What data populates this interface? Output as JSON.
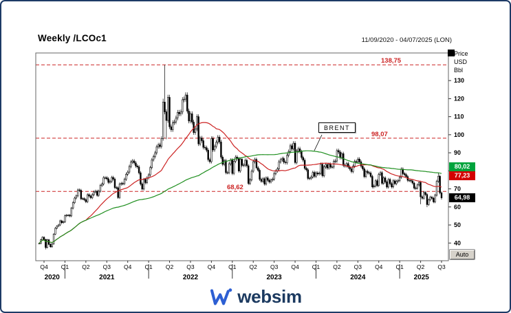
{
  "window": {
    "title": "Weekly /LCOc1",
    "date_range": "11/09/2020 - 04/07/2025 (LON)"
  },
  "annotations": {
    "instrument_label": "BRENT"
  },
  "controls": {
    "auto_button": "Auto"
  },
  "footer": {
    "brand": "websim"
  },
  "price_tags": [
    {
      "label": "80,02",
      "value": 80.02,
      "color": "#00a33c"
    },
    {
      "label": "77,23",
      "value": 77.23,
      "color": "#d40000"
    },
    {
      "label": "64,98",
      "value": 64.98,
      "color": "#000000"
    }
  ],
  "chart_data": {
    "type": "candlestick",
    "title": "Weekly /LCOc1",
    "instrument": "BRENT",
    "interval": "weekly",
    "x_range": "11/09/2020 - 04/07/2025",
    "ylim": [
      30.2,
      145.3
    ],
    "y_ticks": [
      130,
      120,
      110,
      100,
      90,
      80,
      70,
      60,
      50,
      40
    ],
    "y_unit_labels": [
      "Price",
      "USD",
      "Bbl"
    ],
    "x_quarters": [
      "Q4",
      "Q1",
      "Q2",
      "Q3",
      "Q4",
      "Q1",
      "Q2",
      "Q3",
      "Q4",
      "Q1",
      "Q2",
      "Q3",
      "Q4",
      "Q1",
      "Q2",
      "Q3",
      "Q4",
      "Q1",
      "Q2",
      "Q3"
    ],
    "x_years": [
      "2020",
      "2021",
      "2022",
      "2023",
      "2024",
      "2025"
    ],
    "levels": [
      {
        "value": 138.75,
        "label": "138,75"
      },
      {
        "value": 98.07,
        "label": "98,07"
      },
      {
        "value": 68.62,
        "label": "68,62"
      }
    ],
    "closes": [
      39.8,
      41.8,
      43.2,
      41.9,
      37.5,
      41.8,
      39.3,
      37.9,
      39.5,
      44.9,
      48.2,
      49.3,
      50.0,
      52.3,
      51.3,
      51.8,
      55.1,
      55.4,
      55.4,
      55.0,
      59.3,
      62.4,
      64.9,
      66.1,
      69.4,
      69.2,
      64.5,
      64.6,
      64.0,
      62.9,
      66.8,
      66.1,
      65.1,
      66.8,
      68.3,
      68.7,
      66.4,
      68.7,
      71.9,
      72.7,
      76.2,
      76.2,
      75.6,
      73.6,
      74.1,
      76.3,
      75.4,
      70.7,
      70.6,
      65.2,
      72.7,
      73.0,
      72.9,
      75.3,
      78.1,
      79.3,
      82.4,
      84.9,
      85.5,
      84.4,
      82.7,
      82.2,
      78.9,
      72.7,
      69.9,
      75.2,
      73.5,
      76.1,
      77.8,
      81.8,
      86.1,
      87.9,
      90.0,
      93.3,
      94.4,
      93.5,
      97.9,
      118.1,
      112.7,
      107.9,
      120.7,
      104.4,
      102.8,
      106.7,
      107.1,
      109.3,
      112.4,
      111.6,
      112.6,
      119.4,
      119.7,
      122.0,
      113.1,
      107.6,
      111.6,
      107.0,
      101.2,
      103.2,
      110.0,
      94.9,
      98.2,
      96.7,
      93.0,
      92.8,
      91.4,
      86.2,
      85.1,
      97.9,
      91.6,
      93.5,
      95.8,
      98.6,
      96.0,
      87.6,
      83.6,
      85.6,
      79.0,
      79.0,
      83.9,
      85.9,
      78.6,
      85.3,
      87.6,
      86.7,
      79.9,
      86.4,
      83.0,
      83.2,
      85.8,
      82.8,
      73.0,
      75.0,
      79.8,
      85.1,
      86.3,
      81.7,
      80.3,
      75.3,
      74.2,
      75.6,
      72.7,
      76.1,
      74.8,
      73.9,
      74.9,
      75.4,
      78.5,
      79.9,
      81.1,
      85.0,
      86.2,
      86.8,
      84.8,
      84.5,
      88.6,
      90.7,
      93.9,
      92.2,
      95.3,
      84.6,
      90.9,
      92.2,
      90.5,
      87.4,
      85.9,
      81.4,
      80.6,
      75.8,
      75.9,
      76.6,
      79.1,
      77.0,
      78.8,
      78.3,
      78.6,
      83.6,
      77.3,
      82.2,
      83.5,
      81.6,
      83.6,
      82.1,
      82.1,
      85.3,
      85.4,
      91.2,
      90.4,
      87.3,
      89.5,
      83.0,
      82.8,
      84.0,
      82.1,
      81.1,
      79.6,
      82.6,
      85.2,
      85.0,
      86.5,
      85.0,
      82.6,
      81.1,
      76.8,
      79.7,
      79.0,
      78.8,
      76.9,
      71.1,
      71.6,
      74.5,
      71.9,
      78.0,
      79.0,
      73.1,
      76.1,
      73.9,
      71.0,
      75.2,
      72.9,
      71.1,
      74.5,
      72.9,
      74.2,
      74.6,
      76.5,
      81.0,
      78.5,
      77.9,
      76.8,
      74.7,
      74.7,
      74.4,
      73.2,
      70.4,
      70.4,
      72.2,
      73.6,
      65.6,
      64.8,
      68.0,
      66.9,
      61.3,
      63.9,
      65.4,
      64.8,
      62.8,
      66.5,
      74.2,
      77.0,
      67.8,
      64.98
    ],
    "wick_overrides": {
      "4": {
        "low": 36.5
      },
      "49": {
        "low": 64.5
      },
      "77": {
        "high": 120.0
      },
      "78": {
        "high": 138.75
      },
      "79": {
        "low": 97.5
      },
      "237": {
        "low": 61.5
      },
      "241": {
        "low": 59.9
      },
      "248": {
        "high": 79.0
      },
      "250": {
        "low": 64.0
      }
    },
    "overlays": [
      {
        "name": "sma-fast",
        "window": 30,
        "color": "#cc2222"
      },
      {
        "name": "sma-slow",
        "window": 100,
        "color": "#1f8f1f"
      }
    ],
    "last_close": 64.98,
    "grid": "off",
    "legend": "none"
  }
}
